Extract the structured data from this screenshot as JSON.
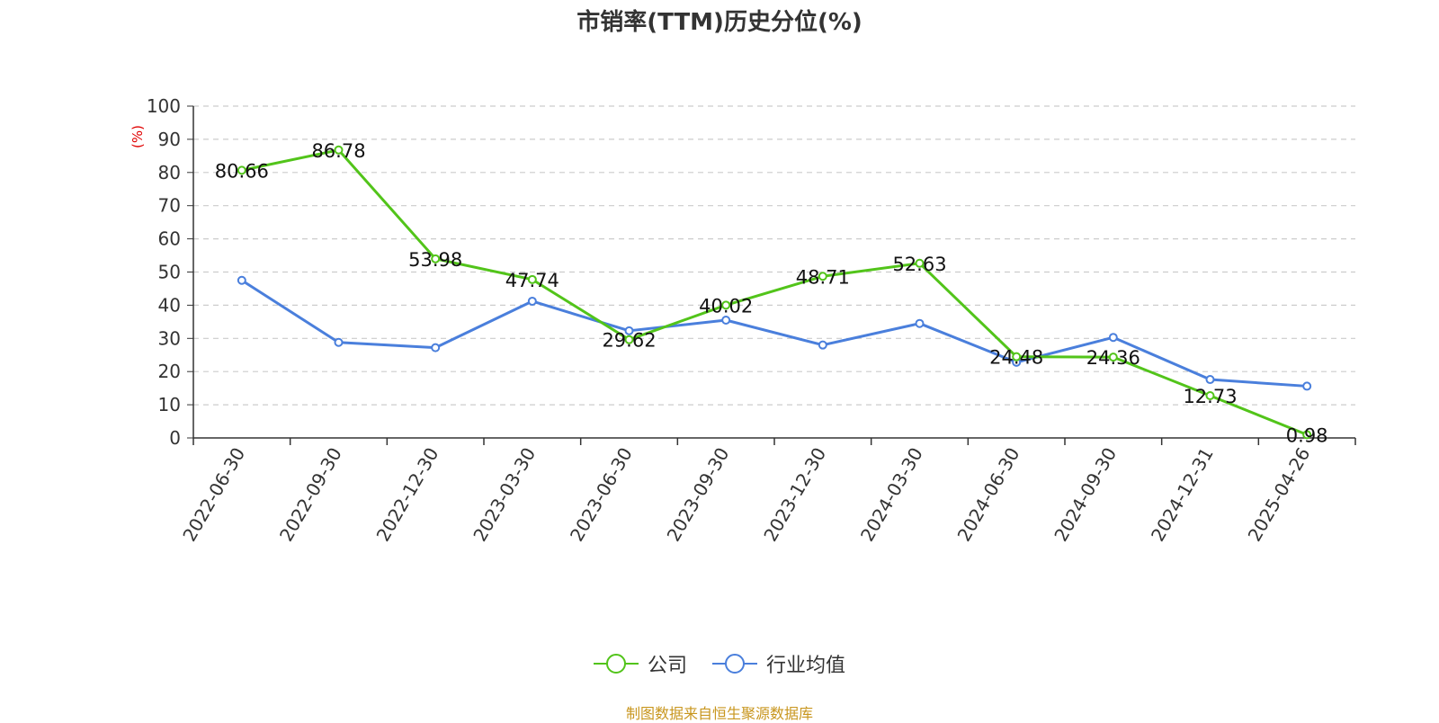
{
  "chart_data": {
    "type": "line",
    "title": "市销率(TTM)历史分位(%)",
    "ylabel": "(%)",
    "ylim": [
      0,
      100
    ],
    "yticks": [
      0,
      10,
      20,
      30,
      40,
      50,
      60,
      70,
      80,
      90,
      100
    ],
    "grid": true,
    "legend_position": "bottom",
    "categories": [
      "2022-06-30",
      "2022-09-30",
      "2022-12-30",
      "2023-03-30",
      "2023-06-30",
      "2023-09-30",
      "2023-12-30",
      "2024-03-30",
      "2024-06-30",
      "2024-09-30",
      "2024-12-31",
      "2025-04-26"
    ],
    "series": [
      {
        "name": "公司",
        "color": "#52c41a",
        "show_labels": true,
        "values": [
          80.66,
          86.78,
          53.98,
          47.74,
          29.62,
          40.02,
          48.71,
          52.63,
          24.48,
          24.36,
          12.73,
          0.98
        ]
      },
      {
        "name": "行业均值",
        "color": "#4a7fdc",
        "show_labels": false,
        "values": [
          47.5,
          28.8,
          27.2,
          41.2,
          32.3,
          35.5,
          28.0,
          34.5,
          22.8,
          30.3,
          17.6,
          15.6
        ]
      }
    ]
  },
  "source_note": "制图数据来自恒生聚源数据库"
}
